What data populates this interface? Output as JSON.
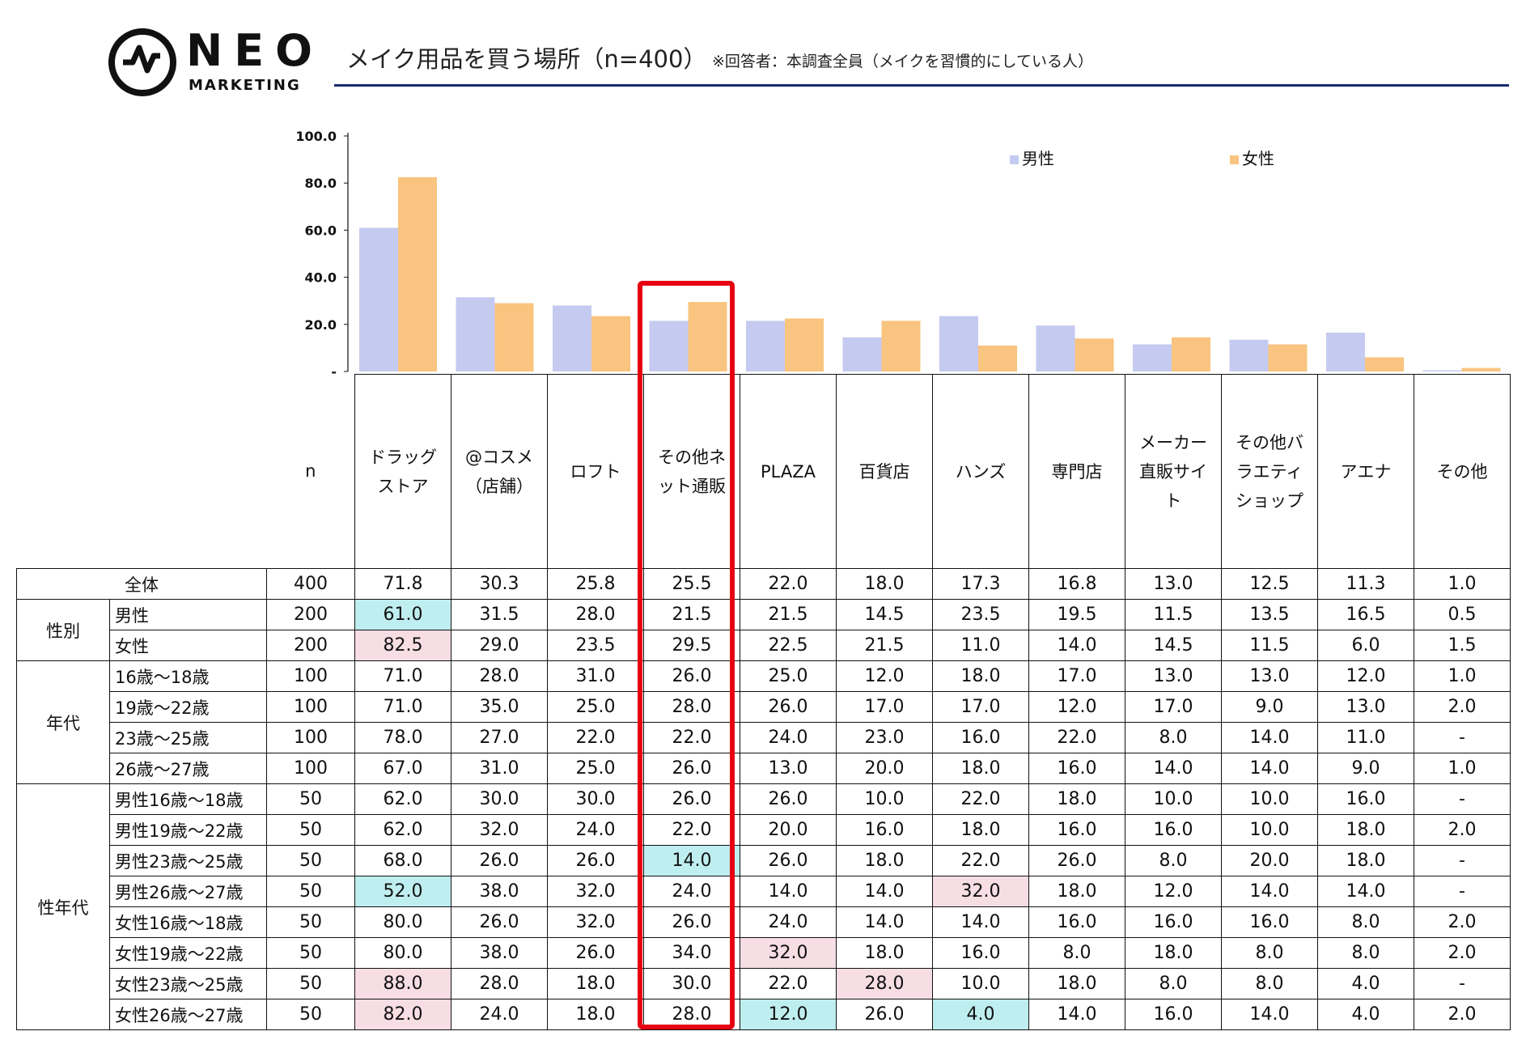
{
  "header": {
    "logo_main": "NEO",
    "logo_sub": "MARKETING",
    "title": "メイク用品を買う場所（n=400）",
    "note": "※回答者：本調査全員（メイクを習慣的にしている人）"
  },
  "colors": {
    "male": "#c5caf0",
    "female": "#f9c47f",
    "highlight_box": "#e60012",
    "rule": "#1a2a6c"
  },
  "chart_data": {
    "type": "bar",
    "categories": [
      "ドラッグストア",
      "@コスメ（店舗）",
      "ロフト",
      "その他ネット通販",
      "PLAZA",
      "百貨店",
      "ハンズ",
      "専門店",
      "メーカー直販サイト",
      "その他バラエティショップ",
      "アエナ",
      "その他"
    ],
    "series": [
      {
        "name": "男性",
        "values": [
          61.0,
          31.5,
          28.0,
          21.5,
          21.5,
          14.5,
          23.5,
          19.5,
          11.5,
          13.5,
          16.5,
          0.5
        ]
      },
      {
        "name": "女性",
        "values": [
          82.5,
          29.0,
          23.5,
          29.5,
          22.5,
          21.5,
          11.0,
          14.0,
          14.5,
          11.5,
          6.0,
          1.5
        ]
      }
    ],
    "y_ticks": [
      "100.0",
      "80.0",
      "60.0",
      "40.0",
      "20.0",
      "-"
    ],
    "ylim": [
      0,
      100
    ],
    "legend_position": "top-right",
    "highlighted_category": "その他ネット通販"
  },
  "table": {
    "n_label": "n",
    "columns": [
      "ドラッグストア",
      "@コスメ（店舗）",
      "ロフト",
      "その他ネット通販",
      "PLAZA",
      "百貨店",
      "ハンズ",
      "専門店",
      "メーカー直販サイト",
      "その他バラエティショップ",
      "アエナ",
      "その他"
    ],
    "rows": [
      {
        "group": "全体",
        "label": "",
        "n": "400",
        "values": [
          "71.8",
          "30.3",
          "25.8",
          "25.5",
          "22.0",
          "18.0",
          "17.3",
          "16.8",
          "13.0",
          "12.5",
          "11.3",
          "1.0"
        ]
      },
      {
        "group": "性別",
        "label": "男性",
        "n": "200",
        "values": [
          "61.0",
          "31.5",
          "28.0",
          "21.5",
          "21.5",
          "14.5",
          "23.5",
          "19.5",
          "11.5",
          "13.5",
          "16.5",
          "0.5"
        ]
      },
      {
        "group": "",
        "label": "女性",
        "n": "200",
        "values": [
          "82.5",
          "29.0",
          "23.5",
          "29.5",
          "22.5",
          "21.5",
          "11.0",
          "14.0",
          "14.5",
          "11.5",
          "6.0",
          "1.5"
        ]
      },
      {
        "group": "年代",
        "label": "16歳～18歳",
        "n": "100",
        "values": [
          "71.0",
          "28.0",
          "31.0",
          "26.0",
          "25.0",
          "12.0",
          "18.0",
          "17.0",
          "13.0",
          "13.0",
          "12.0",
          "1.0"
        ]
      },
      {
        "group": "",
        "label": "19歳～22歳",
        "n": "100",
        "values": [
          "71.0",
          "35.0",
          "25.0",
          "28.0",
          "26.0",
          "17.0",
          "17.0",
          "12.0",
          "17.0",
          "9.0",
          "13.0",
          "2.0"
        ]
      },
      {
        "group": "",
        "label": "23歳～25歳",
        "n": "100",
        "values": [
          "78.0",
          "27.0",
          "22.0",
          "22.0",
          "24.0",
          "23.0",
          "16.0",
          "22.0",
          "8.0",
          "14.0",
          "11.0",
          "-"
        ]
      },
      {
        "group": "",
        "label": "26歳～27歳",
        "n": "100",
        "values": [
          "67.0",
          "31.0",
          "25.0",
          "26.0",
          "13.0",
          "20.0",
          "18.0",
          "16.0",
          "14.0",
          "14.0",
          "9.0",
          "1.0"
        ]
      },
      {
        "group": "性年代",
        "label": "男性16歳～18歳",
        "n": "50",
        "values": [
          "62.0",
          "30.0",
          "30.0",
          "26.0",
          "26.0",
          "10.0",
          "22.0",
          "18.0",
          "10.0",
          "10.0",
          "16.0",
          "-"
        ]
      },
      {
        "group": "",
        "label": "男性19歳～22歳",
        "n": "50",
        "values": [
          "62.0",
          "32.0",
          "24.0",
          "22.0",
          "20.0",
          "16.0",
          "18.0",
          "16.0",
          "16.0",
          "10.0",
          "18.0",
          "2.0"
        ]
      },
      {
        "group": "",
        "label": "男性23歳～25歳",
        "n": "50",
        "values": [
          "68.0",
          "26.0",
          "26.0",
          "14.0",
          "26.0",
          "18.0",
          "22.0",
          "26.0",
          "8.0",
          "20.0",
          "18.0",
          "-"
        ]
      },
      {
        "group": "",
        "label": "男性26歳～27歳",
        "n": "50",
        "values": [
          "52.0",
          "38.0",
          "32.0",
          "24.0",
          "14.0",
          "14.0",
          "32.0",
          "18.0",
          "12.0",
          "14.0",
          "14.0",
          "-"
        ]
      },
      {
        "group": "",
        "label": "女性16歳～18歳",
        "n": "50",
        "values": [
          "80.0",
          "26.0",
          "32.0",
          "26.0",
          "24.0",
          "14.0",
          "14.0",
          "16.0",
          "16.0",
          "16.0",
          "8.0",
          "2.0"
        ]
      },
      {
        "group": "",
        "label": "女性19歳～22歳",
        "n": "50",
        "values": [
          "80.0",
          "38.0",
          "26.0",
          "34.0",
          "32.0",
          "18.0",
          "16.0",
          "8.0",
          "18.0",
          "8.0",
          "8.0",
          "2.0"
        ]
      },
      {
        "group": "",
        "label": "女性23歳～25歳",
        "n": "50",
        "values": [
          "88.0",
          "28.0",
          "18.0",
          "30.0",
          "22.0",
          "28.0",
          "10.0",
          "18.0",
          "8.0",
          "8.0",
          "4.0",
          "-"
        ]
      },
      {
        "group": "",
        "label": "女性26歳～27歳",
        "n": "50",
        "values": [
          "82.0",
          "24.0",
          "18.0",
          "28.0",
          "12.0",
          "26.0",
          "4.0",
          "14.0",
          "16.0",
          "14.0",
          "4.0",
          "2.0"
        ]
      }
    ],
    "highlights": [
      {
        "row": 1,
        "col": 0,
        "color": "cyan"
      },
      {
        "row": 2,
        "col": 0,
        "color": "pink"
      },
      {
        "row": 9,
        "col": 3,
        "color": "cyan"
      },
      {
        "row": 10,
        "col": 0,
        "color": "cyan"
      },
      {
        "row": 10,
        "col": 6,
        "color": "pink"
      },
      {
        "row": 12,
        "col": 4,
        "color": "pink"
      },
      {
        "row": 13,
        "col": 0,
        "color": "pink"
      },
      {
        "row": 13,
        "col": 5,
        "color": "pink"
      },
      {
        "row": 14,
        "col": 0,
        "color": "pink"
      },
      {
        "row": 14,
        "col": 4,
        "color": "cyan"
      },
      {
        "row": 14,
        "col": 6,
        "color": "cyan"
      }
    ]
  }
}
